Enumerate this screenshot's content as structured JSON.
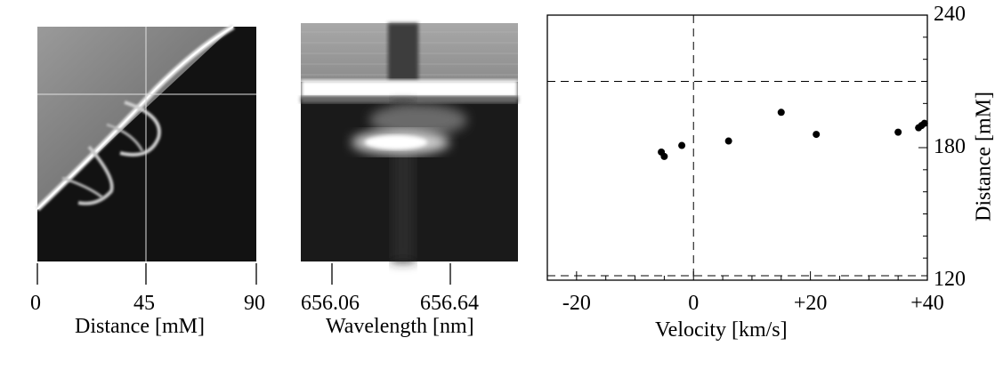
{
  "panels": {
    "left": {
      "xlabel": "Distance [mM]",
      "ticks": [
        "0",
        "45",
        "90"
      ]
    },
    "middle": {
      "xlabel": "Wavelength [nm]",
      "ticks": [
        "656.06",
        "656.64"
      ]
    }
  },
  "chart_data": [
    {
      "type": "scatter",
      "title": "",
      "xlabel": "Velocity [km/s]",
      "ylabel": "Distance [mM]",
      "xlim": [
        -25,
        40
      ],
      "ylim": [
        120,
        240
      ],
      "x_tick_labels": [
        "-20",
        "0",
        "+20",
        "+40"
      ],
      "y_tick_labels": [
        "120",
        "180",
        "240"
      ],
      "reference_lines": {
        "vertical_x": 0,
        "horizontal_y": [
          210,
          122
        ]
      },
      "grid": false,
      "legend": "none",
      "x": [
        -5.5,
        -5.0,
        -2.0,
        6.0,
        15.0,
        21.0,
        35.0,
        38.5,
        39.0,
        39.5
      ],
      "y": [
        178,
        176,
        181,
        183,
        196,
        186,
        187,
        189,
        190,
        191
      ]
    }
  ]
}
